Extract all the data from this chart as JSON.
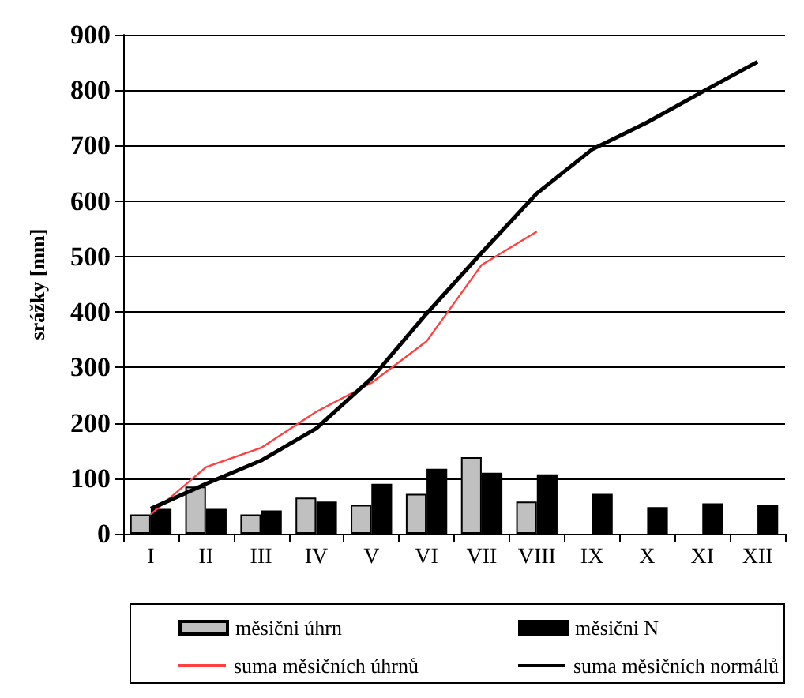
{
  "chart_data": {
    "type": "bar",
    "ylabel": "srážky [mm]",
    "categories": [
      "I",
      "II",
      "III",
      "IV",
      "V",
      "VI",
      "VII",
      "VIII",
      "IX",
      "X",
      "XI",
      "XII"
    ],
    "ylim": [
      0,
      900
    ],
    "yticks": [
      0,
      100,
      200,
      300,
      400,
      500,
      600,
      700,
      800,
      900
    ],
    "grid": "y",
    "legend": "bottom",
    "series": [
      {
        "name": "měsični úhrn",
        "color": "#c0c0c0",
        "values": [
          35,
          85,
          35,
          65,
          52,
          72,
          138,
          58,
          null,
          null,
          null,
          null
        ]
      },
      {
        "name": "měsični N",
        "color": "#000000",
        "values": [
          45,
          45,
          42,
          58,
          90,
          117,
          110,
          107,
          72,
          48,
          55,
          52
        ]
      },
      {
        "name": "suma měsičních úhrnů",
        "type": "line",
        "color": "#ff4040",
        "values": [
          35,
          120,
          155,
          220,
          272,
          347,
          485,
          545,
          null,
          null,
          null,
          null
        ]
      },
      {
        "name": "suma měsičních normálů",
        "type": "line",
        "color": "#000000",
        "values": [
          45,
          90,
          132,
          190,
          280,
          397,
          507,
          614,
          693,
          742,
          797,
          851
        ]
      }
    ]
  }
}
